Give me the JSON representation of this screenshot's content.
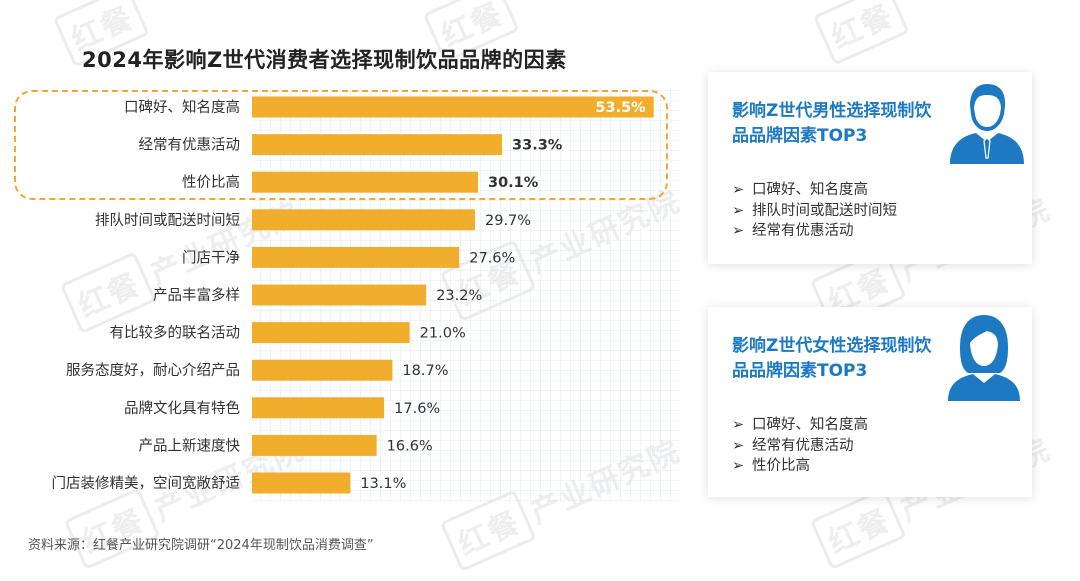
{
  "chart_data": {
    "type": "bar",
    "orientation": "horizontal",
    "title": "2024年影响Z世代消费者选择现制饮品品牌的因素",
    "categories": [
      "口碑好、知名度高",
      "经常有优惠活动",
      "性价比高",
      "排队时间或配送时间短",
      "门店干净",
      "产品丰富多样",
      "有比较多的联名活动",
      "服务态度好，耐心介绍产品",
      "品牌文化具有特色",
      "产品上新速度快",
      "门店装修精美，空间宽敞舒适"
    ],
    "values": [
      53.5,
      33.3,
      30.1,
      29.7,
      27.6,
      23.2,
      21.0,
      18.7,
      17.6,
      16.6,
      13.1
    ],
    "value_labels": [
      "53.5%",
      "33.3%",
      "30.1%",
      "29.7%",
      "27.6%",
      "23.2%",
      "21.0%",
      "18.7%",
      "17.6%",
      "16.6%",
      "13.1%"
    ],
    "highlighted_top": 3,
    "bar_color": "#f1ad2c",
    "xlim": [
      0,
      57
    ],
    "grid": true
  },
  "source": "资料来源：红餐产业研究院调研“2024年现制饮品消费调查”",
  "cards": {
    "male": {
      "title": "影响Z世代男性选择现制饮品品牌因素TOP3",
      "icon": "male-user-icon",
      "items": [
        "口碑好、知名度高",
        "排队时间或配送时间短",
        "经常有优惠活动"
      ]
    },
    "female": {
      "title": "影响Z世代女性选择现制饮品品牌因素TOP3",
      "icon": "female-user-icon",
      "items": [
        "口碑好、知名度高",
        "经常有优惠活动",
        "性价比高"
      ]
    }
  },
  "list_marker": "➢",
  "watermark": {
    "seal": "红餐",
    "text": "产业研究院"
  },
  "colors": {
    "accent": "#1d7ac2",
    "bar": "#f1ad2c",
    "highlight": "#f0a830"
  }
}
